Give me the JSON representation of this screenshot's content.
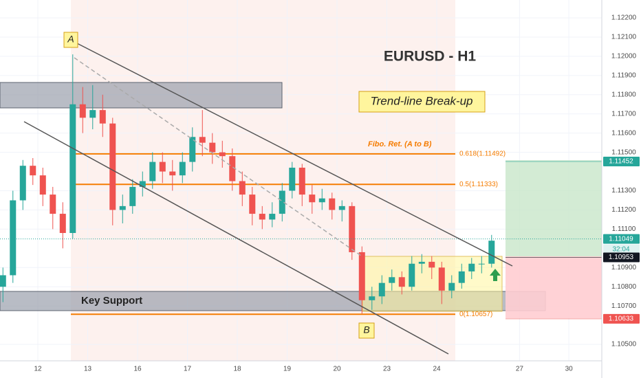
{
  "chart_data": {
    "type": "candlestick",
    "title": "EURUSD - H1",
    "annotations": {
      "setup": "Trend-line Break-up",
      "zone": "Key Support",
      "point_a": "A",
      "point_b": "B",
      "fib_title": "Fibo. Ret. (A to B)",
      "countdown": "32:04"
    },
    "up_color": "#26a69a",
    "down_color": "#ef5350",
    "x": [
      -0.7,
      -0.5,
      -0.3,
      -0.1,
      0.1,
      0.3,
      0.5,
      0.7,
      0.9,
      1.1,
      1.3,
      1.5,
      1.7,
      1.9,
      2.1,
      2.3,
      2.5,
      2.7,
      2.9,
      3.1,
      3.3,
      3.5,
      3.7,
      3.9,
      4.1,
      4.3,
      4.5,
      4.7,
      4.9,
      5.1,
      5.3,
      5.5,
      5.7,
      5.9,
      6.1,
      6.3,
      6.5,
      6.7,
      6.9,
      7.1,
      7.3,
      7.5,
      7.7,
      7.9,
      8.1,
      8.3,
      8.5,
      8.7,
      8.9,
      9.1
    ],
    "open": [
      1.108,
      1.1086,
      1.1125,
      1.1143,
      1.1138,
      1.1128,
      1.1118,
      1.1108,
      1.1175,
      1.1168,
      1.1172,
      1.1165,
      1.112,
      1.1122,
      1.1132,
      1.1135,
      1.1145,
      1.114,
      1.1138,
      1.1145,
      1.1158,
      1.1155,
      1.115,
      1.1148,
      1.1135,
      1.1128,
      1.1118,
      1.1115,
      1.1118,
      1.113,
      1.1142,
      1.1128,
      1.1124,
      1.1126,
      1.112,
      1.1122,
      1.1098,
      1.1073,
      1.1075,
      1.1082,
      1.1085,
      1.108,
      1.1092,
      1.1093,
      1.109,
      1.1078,
      1.1082,
      1.1088,
      1.1092,
      1.1092
    ],
    "high": [
      1.109,
      1.113,
      1.1146,
      1.1147,
      1.1142,
      1.1132,
      1.1124,
      1.1201,
      1.1184,
      1.1185,
      1.118,
      1.1168,
      1.1128,
      1.1136,
      1.114,
      1.115,
      1.115,
      1.1146,
      1.115,
      1.1163,
      1.1172,
      1.116,
      1.1156,
      1.1152,
      1.114,
      1.1132,
      1.1122,
      1.1124,
      1.1134,
      1.1145,
      1.1144,
      1.1133,
      1.1131,
      1.1129,
      1.1125,
      1.1124,
      1.1101,
      1.108,
      1.1086,
      1.1089,
      1.1088,
      1.1096,
      1.1097,
      1.1096,
      1.1093,
      1.1086,
      1.1092,
      1.1095,
      1.1096,
      1.1107
    ],
    "low": [
      1.1072,
      1.1082,
      1.112,
      1.1133,
      1.1122,
      1.111,
      1.11,
      1.1105,
      1.116,
      1.1162,
      1.1158,
      1.1112,
      1.1113,
      1.1118,
      1.1127,
      1.1131,
      1.1134,
      1.113,
      1.1134,
      1.114,
      1.1148,
      1.1144,
      1.1142,
      1.113,
      1.1122,
      1.1112,
      1.111,
      1.1111,
      1.1114,
      1.1126,
      1.1122,
      1.1118,
      1.112,
      1.1115,
      1.1114,
      1.1094,
      1.1066,
      1.1068,
      1.1071,
      1.1078,
      1.1076,
      1.1078,
      1.1087,
      1.1084,
      1.1071,
      1.1074,
      1.1079,
      1.1084,
      1.1087,
      1.109
    ],
    "close": [
      1.1086,
      1.1125,
      1.1143,
      1.1138,
      1.1128,
      1.1118,
      1.1108,
      1.1175,
      1.1168,
      1.1172,
      1.1165,
      1.112,
      1.1122,
      1.1132,
      1.1135,
      1.1145,
      1.114,
      1.1138,
      1.1145,
      1.1158,
      1.1155,
      1.115,
      1.1148,
      1.1135,
      1.1128,
      1.1118,
      1.1115,
      1.1118,
      1.113,
      1.1142,
      1.1128,
      1.1124,
      1.1126,
      1.112,
      1.1122,
      1.1098,
      1.1073,
      1.1075,
      1.1082,
      1.1085,
      1.108,
      1.1092,
      1.1093,
      1.109,
      1.1078,
      1.1082,
      1.1088,
      1.1092,
      1.1092,
      1.1104
    ],
    "xlim": [
      -0.759,
      11.31
    ],
    "xticks": [
      {
        "value": 0,
        "label": "12"
      },
      {
        "value": 1,
        "label": "13"
      },
      {
        "value": 2,
        "label": "16"
      },
      {
        "value": 3,
        "label": "17"
      },
      {
        "value": 4,
        "label": "18"
      },
      {
        "value": 5,
        "label": "19"
      },
      {
        "value": 6,
        "label": "20"
      },
      {
        "value": 7,
        "label": "23"
      },
      {
        "value": 8,
        "label": "24"
      },
      {
        "value": 9.66,
        "label": "27"
      },
      {
        "value": 10.65,
        "label": "30"
      }
    ],
    "ylim": [
      1.10325,
      1.12293
    ],
    "yticks": [
      {
        "value": 1.122,
        "label": "1.12200"
      },
      {
        "value": 1.121,
        "label": "1.12100"
      },
      {
        "value": 1.12,
        "label": "1.12000"
      },
      {
        "value": 1.119,
        "label": "1.11900"
      },
      {
        "value": 1.118,
        "label": "1.11800"
      },
      {
        "value": 1.117,
        "label": "1.11700"
      },
      {
        "value": 1.116,
        "label": "1.11600"
      },
      {
        "value": 1.115,
        "label": "1.11500"
      },
      {
        "value": 1.113,
        "label": "1.11300"
      },
      {
        "value": 1.112,
        "label": "1.11200"
      },
      {
        "value": 1.111,
        "label": "1.11100"
      },
      {
        "value": 1.109,
        "label": "1.10900"
      },
      {
        "value": 1.108,
        "label": "1.10800"
      },
      {
        "value": 1.107,
        "label": "1.10700"
      },
      {
        "value": 1.105,
        "label": "1.10500"
      }
    ],
    "grid": true,
    "fib_levels": [
      {
        "value": 1.11492,
        "label": "0.618(1.11492)"
      },
      {
        "value": 1.11333,
        "label": "0.5(1.11333)"
      },
      {
        "value": 1.10657,
        "label": "0(1.10657)"
      }
    ],
    "fib_color": "#f57c00",
    "price_badges": [
      {
        "value": 1.11452,
        "label": "1.11452",
        "color": "#26a69a"
      },
      {
        "value": 1.11049,
        "label": "1.11049",
        "color": "#26a69a"
      },
      {
        "value": 1.10953,
        "label": "1.10953",
        "color": "#131722"
      },
      {
        "value": 1.10633,
        "label": "1.10633",
        "color": "#ef5350"
      }
    ]
  }
}
